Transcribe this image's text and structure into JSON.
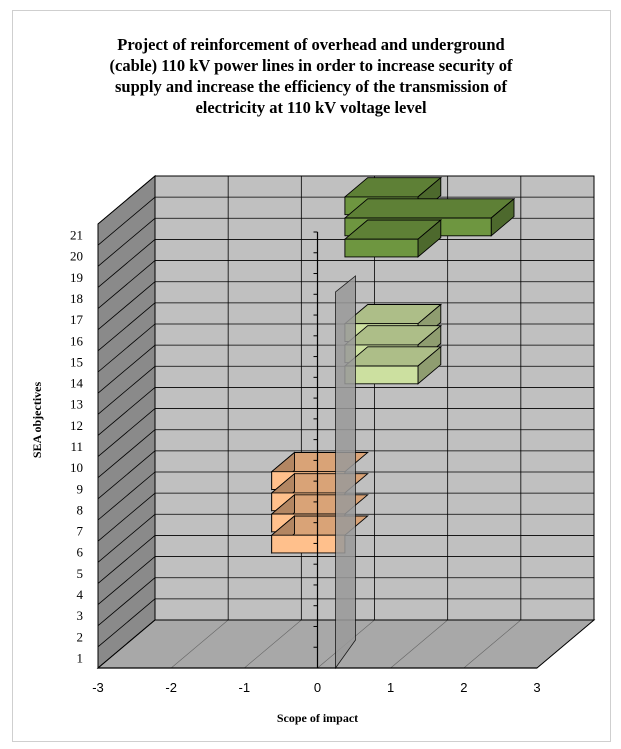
{
  "chart_data": {
    "type": "bar",
    "orientation": "horizontal-3d",
    "title": "Project of reinforcement of overhead and underground (cable) 110 kV power lines in order to increase security of supply and increase the efficiency of the transmission of electricity at 110 kV voltage level",
    "xlabel": "Scope of impact",
    "ylabel": "SEA objectives",
    "xlim": [
      -3,
      3
    ],
    "x_ticks": [
      "-3",
      "-2",
      "-1",
      "0",
      "1",
      "2",
      "3"
    ],
    "categories": [
      "1",
      "2",
      "3",
      "4",
      "5",
      "6",
      "7",
      "8",
      "9",
      "10",
      "11",
      "12",
      "13",
      "14",
      "15",
      "16",
      "17",
      "18",
      "19",
      "20",
      "21"
    ],
    "values": [
      0,
      0,
      0,
      0,
      -1,
      -1,
      -1,
      -1,
      0,
      0,
      0,
      0,
      1,
      1,
      1,
      0,
      0,
      0,
      1,
      2,
      1
    ],
    "bar_colors": {
      "negative": "#FFC08C",
      "positive_light": "#CCE0A0",
      "positive_dark": "#6E9640"
    },
    "grid": true,
    "legend": "none"
  }
}
